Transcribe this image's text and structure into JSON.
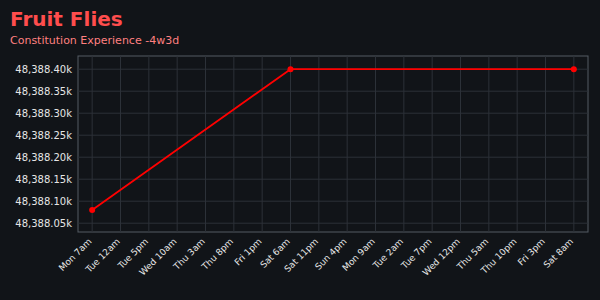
{
  "chart_data": {
    "type": "line",
    "title": "Fruit Flies",
    "subtitle": "Constitution Experience -4w3d",
    "categories": [
      "Mon 7am",
      "Tue 12am",
      "Tue 5pm",
      "Wed 10am",
      "Thu 3am",
      "Thu 8pm",
      "Fri 1pm",
      "Sat 6am",
      "Sat 11pm",
      "Sun 4pm",
      "Mon 9am",
      "Tue 2am",
      "Tue 7pm",
      "Wed 12pm",
      "Thu 5am",
      "Thu 10pm",
      "Fri 3pm",
      "Sat 8am"
    ],
    "series": [
      {
        "x": [
          "Mon 7am",
          "Sat 6am",
          "Sat 8am"
        ],
        "values": [
          48388080,
          48388400,
          48388400
        ],
        "color": "#ff0000",
        "marker": "circle"
      }
    ],
    "ylim": [
      48388030,
      48388430
    ],
    "yticks": [
      {
        "value": 48388050,
        "label": "48,388.05k"
      },
      {
        "value": 48388100,
        "label": "48,388.10k"
      },
      {
        "value": 48388150,
        "label": "48,388.15k"
      },
      {
        "value": 48388200,
        "label": "48,388.20k"
      },
      {
        "value": 48388250,
        "label": "48,388.25k"
      },
      {
        "value": 48388300,
        "label": "48,388.30k"
      },
      {
        "value": 48388350,
        "label": "48,388.35k"
      },
      {
        "value": 48388400,
        "label": "48,388.40k"
      }
    ],
    "grid": true
  }
}
